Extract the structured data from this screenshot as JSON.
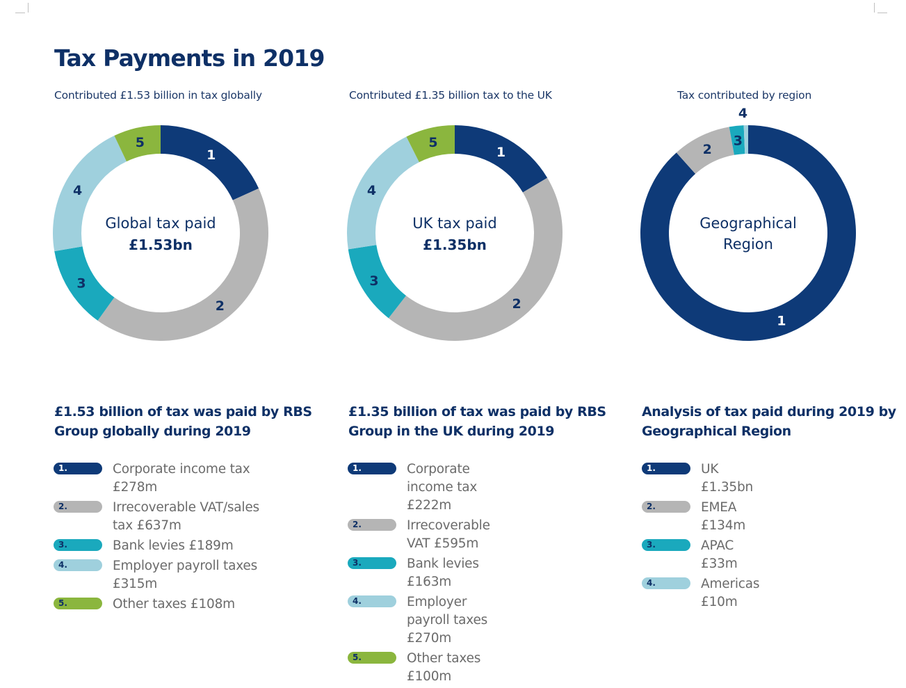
{
  "title": "Tax Payments in 2019",
  "colors": {
    "navy": "#0e3a78",
    "grey": "#b5b5b5",
    "teal": "#1aa9bd",
    "lightblue": "#9fd0dd",
    "green": "#8bb63e"
  },
  "chart_data": [
    {
      "type": "pie",
      "subtitle": "Contributed £1.53 billion in tax globally",
      "center_label": "Global tax paid",
      "center_value": "£1.53bn",
      "categories": [
        "1",
        "2",
        "3",
        "4",
        "5"
      ],
      "values": [
        278,
        637,
        189,
        315,
        108
      ],
      "colors": [
        "#0e3a78",
        "#b5b5b5",
        "#1aa9bd",
        "#9fd0dd",
        "#8bb63e"
      ],
      "heading": "£1.53 billion of tax was paid by RBS Group globally during 2019",
      "legend": [
        {
          "num": "1.",
          "text": "Corporate income tax £278m"
        },
        {
          "num": "2.",
          "text": "Irrecoverable VAT/sales tax £637m"
        },
        {
          "num": "3.",
          "text": "Bank levies £189m"
        },
        {
          "num": "4.",
          "text": "Employer payroll taxes £315m"
        },
        {
          "num": "5.",
          "text": "Other taxes £108m"
        }
      ]
    },
    {
      "type": "pie",
      "subtitle": "Contributed £1.35 billion tax to the UK",
      "center_label": "UK tax paid",
      "center_value": "£1.35bn",
      "categories": [
        "1",
        "2",
        "3",
        "4",
        "5"
      ],
      "values": [
        222,
        595,
        163,
        270,
        100
      ],
      "colors": [
        "#0e3a78",
        "#b5b5b5",
        "#1aa9bd",
        "#9fd0dd",
        "#8bb63e"
      ],
      "heading": "£1.35 billion of tax was paid by RBS Group in the UK during 2019",
      "legend": [
        {
          "num": "1.",
          "text": "Corporate income tax £222m"
        },
        {
          "num": "2.",
          "text": "Irrecoverable VAT £595m"
        },
        {
          "num": "3.",
          "text": "Bank levies £163m"
        },
        {
          "num": "4.",
          "text": "Employer payroll taxes £270m"
        },
        {
          "num": "5.",
          "text": "Other taxes £100m"
        }
      ]
    },
    {
      "type": "pie",
      "subtitle": "Tax contributed by region",
      "center_label": "Geographical Region",
      "center_value": "",
      "categories": [
        "1",
        "2",
        "3",
        "4"
      ],
      "values": [
        1350,
        134,
        33,
        10
      ],
      "colors": [
        "#0e3a78",
        "#b5b5b5",
        "#1aa9bd",
        "#9fd0dd"
      ],
      "heading": "Analysis of tax paid during 2019 by Geographical Region",
      "legend": [
        {
          "num": "1.",
          "text": "UK £1.35bn"
        },
        {
          "num": "2.",
          "text": "EMEA £134m"
        },
        {
          "num": "3.",
          "text": "APAC £33m"
        },
        {
          "num": "4.",
          "text": "Americas £10m"
        }
      ]
    }
  ]
}
